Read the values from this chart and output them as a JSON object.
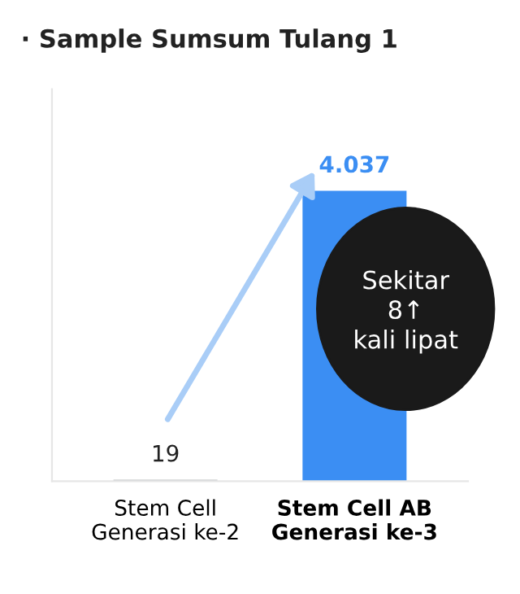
{
  "chart_data": {
    "type": "bar",
    "title": "· Sample Sumsum Tulang 1",
    "categories": [
      "Stem Cell\nGenerasi ke-2",
      "Stem Cell AB\nGenerasi ke-3"
    ],
    "values": [
      19,
      4037
    ],
    "colors": [
      "#bdbfc2",
      "#3b8ef3"
    ],
    "value_labels": [
      "19",
      "4.037"
    ],
    "annotations": [
      "Sekitar\n8↑\nkali lipat"
    ],
    "grid": false,
    "legend": false
  }
}
